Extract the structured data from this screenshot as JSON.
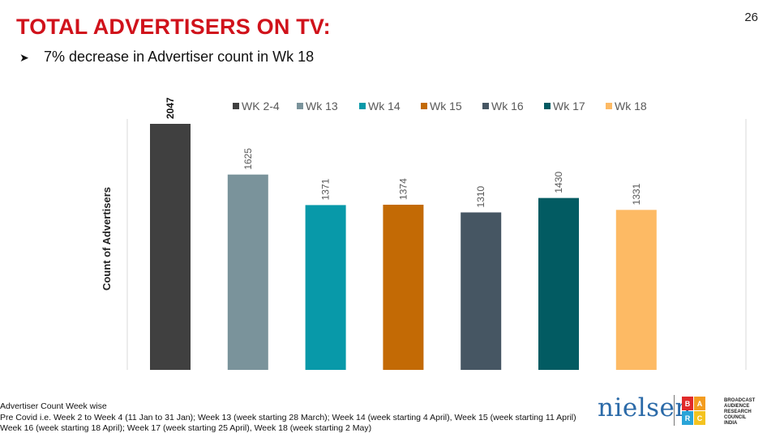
{
  "page": {
    "title": "TOTAL ADVERTISERS ON TV:",
    "page_number": "26"
  },
  "bullet": {
    "icon": "arrowhead-bullet-icon",
    "text": "7% decrease in Advertiser count in Wk 18"
  },
  "chart_data": {
    "type": "bar",
    "categories": [
      "WK 2-4",
      "Wk 13",
      "Wk 14",
      "Wk 15",
      "Wk 16",
      "Wk 17",
      "Wk 18"
    ],
    "values": [
      2047,
      1625,
      1371,
      1374,
      1310,
      1430,
      1331
    ],
    "colors": [
      "#404040",
      "#7a939b",
      "#0899a9",
      "#c36a05",
      "#465663",
      "#025b62",
      "#fdba64"
    ],
    "ylabel": "Count of Advertisers",
    "xlabel": "",
    "ylim": [
      0,
      2047
    ],
    "legend": "top",
    "data_labels": true,
    "grid": false
  },
  "footnotes": {
    "line1": "Advertiser Count Week wise",
    "line2": "Pre Covid i.e. Week 2 to Week 4 (11 Jan to 31 Jan); Week 13 (week starting 28 March); Week 14 (week starting 4 April), Week 15 (week starting 11 April)",
    "line3": "Week 16 (week starting 18 April); Week 17 (week starting 25 April), Week 18 (week starting 2 May)"
  },
  "logos": {
    "nielsen": "nielsen",
    "barc_letters": [
      "B",
      "A",
      "",
      "R",
      "C",
      ""
    ],
    "barc_colors": [
      "#e02a2a",
      "#f39c1f",
      "#ffffff",
      "#2aa4d8",
      "#f4c320",
      "#ffffff"
    ],
    "barc_text": [
      "BROADCAST",
      "AUDIENCE",
      "RESEARCH",
      "COUNCIL",
      "INDIA"
    ]
  }
}
